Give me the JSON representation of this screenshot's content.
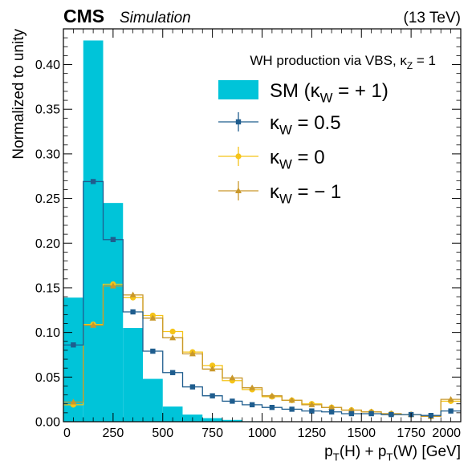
{
  "header": {
    "experiment": "CMS",
    "tag": "Simulation",
    "energy": "(13 TeV)"
  },
  "chart_data": {
    "type": "histogram",
    "xlabel": "p_T(H) + p_T(W) [GeV]",
    "ylabel": "Normalized to unity",
    "xlim": [
      0,
      2000
    ],
    "ylim": [
      0,
      0.44
    ],
    "x_ticks": [
      0,
      250,
      500,
      750,
      1000,
      1250,
      1500,
      1750,
      2000
    ],
    "y_ticks": [
      0.0,
      0.05,
      0.1,
      0.15,
      0.2,
      0.25,
      0.3,
      0.35,
      0.4
    ],
    "bin_edges": [
      0,
      100,
      200,
      300,
      400,
      500,
      600,
      700,
      800,
      900,
      1000,
      1100,
      1200,
      1300,
      1400,
      1500,
      1600,
      1700,
      1800,
      1900,
      2000
    ],
    "legend": {
      "title": "WH production via VBS, κ_Z = 1",
      "placement": "top-right"
    },
    "series": [
      {
        "name": "SM (κ_W = + 1)",
        "style": "filled",
        "color": "#00c4d9",
        "values": [
          0.139,
          0.427,
          0.245,
          0.105,
          0.048,
          0.017,
          0.008,
          0.004,
          0.002,
          0.0005,
          0.0003,
          0.0002,
          0.0001,
          0.0001,
          0,
          0,
          0,
          0,
          0,
          0
        ]
      },
      {
        "name": "κ_W = 0.5",
        "style": "step-markers",
        "marker": "square",
        "color": "#1f5d8e",
        "values": [
          0.086,
          0.269,
          0.204,
          0.123,
          0.079,
          0.055,
          0.039,
          0.029,
          0.023,
          0.019,
          0.016,
          0.014,
          0.012,
          0.011,
          0.009,
          0.009,
          0.008,
          0.008,
          0.007,
          0.012
        ]
      },
      {
        "name": "κ_W = 0",
        "style": "step-markers",
        "marker": "circle",
        "color": "#f5c418",
        "values": [
          0.019,
          0.109,
          0.154,
          0.139,
          0.119,
          0.101,
          0.078,
          0.063,
          0.046,
          0.036,
          0.028,
          0.024,
          0.02,
          0.016,
          0.013,
          0.011,
          0.009,
          0.008,
          0.006,
          0.023
        ]
      },
      {
        "name": "κ_W = − 1",
        "style": "step-markers",
        "marker": "triangle",
        "color": "#c9982a",
        "values": [
          0.022,
          0.108,
          0.152,
          0.142,
          0.116,
          0.094,
          0.076,
          0.059,
          0.049,
          0.038,
          0.029,
          0.024,
          0.019,
          0.016,
          0.013,
          0.011,
          0.009,
          0.008,
          0.006,
          0.025
        ]
      }
    ]
  }
}
